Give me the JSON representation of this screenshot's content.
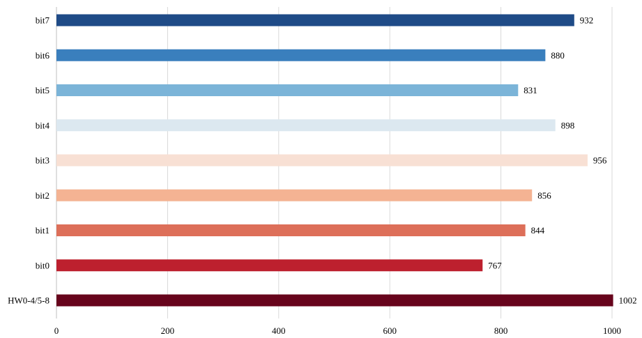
{
  "chart_data": {
    "type": "bar",
    "orientation": "horizontal",
    "title": "",
    "xlabel": "",
    "ylabel": "",
    "xlim": [
      0,
      1000
    ],
    "x_ticks": [
      0,
      200,
      400,
      600,
      800,
      1000
    ],
    "x_tick_labels": [
      "0",
      "200",
      "400",
      "600",
      "800",
      "1000"
    ],
    "grid": "vertical",
    "legend": "none",
    "categories": [
      "bit7",
      "bit6",
      "bit5",
      "bit4",
      "bit3",
      "bit2",
      "bit1",
      "bit0",
      "HW0-4/5-8"
    ],
    "values": [
      932,
      880,
      831,
      898,
      956,
      856,
      844,
      767,
      1002
    ],
    "value_labels": [
      "932",
      "880",
      "831",
      "898",
      "956",
      "856",
      "844",
      "767",
      "1002"
    ],
    "colors": [
      "#1f4b87",
      "#3a7fbd",
      "#7bb4d8",
      "#dce8f0",
      "#f8e0d4",
      "#f4b393",
      "#dd6f59",
      "#bd202e",
      "#67041c"
    ]
  }
}
